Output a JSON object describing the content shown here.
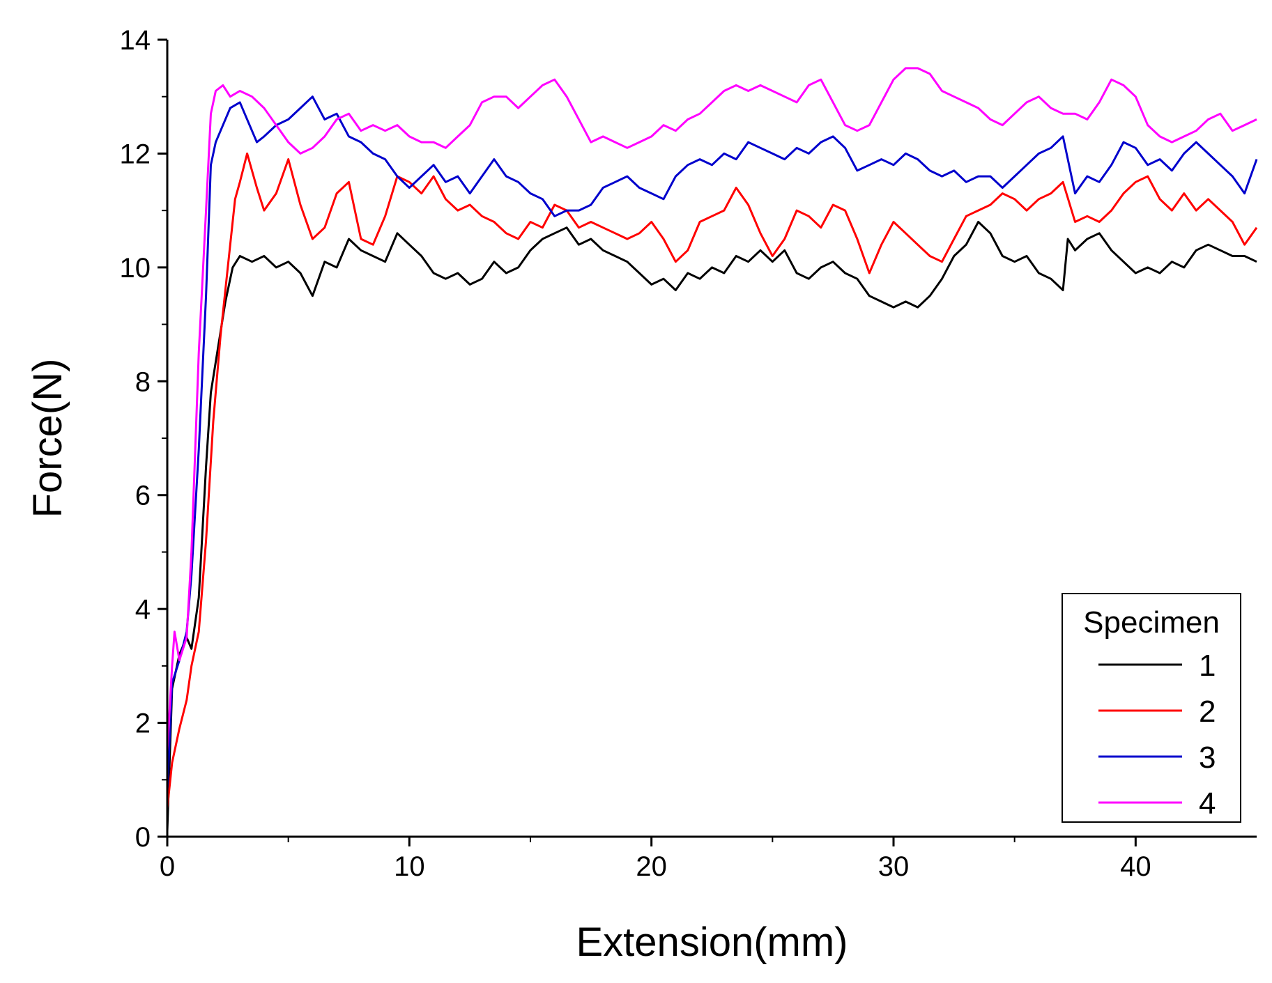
{
  "chart_data": {
    "type": "line",
    "title": "",
    "xlabel": "Extension(mm)",
    "ylabel": "Force(N)",
    "xlim": [
      0,
      45
    ],
    "ylim": [
      0,
      14
    ],
    "xticks": [
      0,
      10,
      20,
      30,
      40
    ],
    "xtick_labels": [
      "0",
      "10",
      "20",
      "30",
      "40"
    ],
    "yticks": [
      0,
      2,
      4,
      6,
      8,
      10,
      12,
      14
    ],
    "ytick_labels": [
      "0",
      "2",
      "4",
      "6",
      "8",
      "10",
      "12",
      "14"
    ],
    "grid": false,
    "legend": {
      "title": "Specimen",
      "position": "bottom-right"
    },
    "series": [
      {
        "name": "1",
        "color": "#000000",
        "x": [
          0,
          0.2,
          0.5,
          0.8,
          1.0,
          1.3,
          1.6,
          1.8,
          2.1,
          2.4,
          2.7,
          3.0,
          3.5,
          4.0,
          4.5,
          5.0,
          5.5,
          6.0,
          6.5,
          7.0,
          7.5,
          8.0,
          8.5,
          9.0,
          9.5,
          10.0,
          10.5,
          11.0,
          11.5,
          12.0,
          12.5,
          13.0,
          13.5,
          14.0,
          14.5,
          15.0,
          15.5,
          16.0,
          16.5,
          17.0,
          17.5,
          18.0,
          18.5,
          19.0,
          19.5,
          20.0,
          20.5,
          21.0,
          21.5,
          22.0,
          22.5,
          23.0,
          23.5,
          24.0,
          24.5,
          25.0,
          25.5,
          26.0,
          26.5,
          27.0,
          27.5,
          28.0,
          28.5,
          29.0,
          29.5,
          30.0,
          30.5,
          31.0,
          31.5,
          32.0,
          32.5,
          33.0,
          33.5,
          34.0,
          34.5,
          35.0,
          35.5,
          36.0,
          36.5,
          37.0,
          37.2,
          37.5,
          38.0,
          38.5,
          39.0,
          39.5,
          40.0,
          40.5,
          41.0,
          41.5,
          42.0,
          42.5,
          43.0,
          43.5,
          44.0,
          44.5,
          45.0
        ],
        "y": [
          0.1,
          2.6,
          3.2,
          3.5,
          3.3,
          4.2,
          6.5,
          7.8,
          8.6,
          9.4,
          10.0,
          10.2,
          10.1,
          10.2,
          10.0,
          10.1,
          9.9,
          9.5,
          10.1,
          10.0,
          10.5,
          10.3,
          10.2,
          10.1,
          10.6,
          10.4,
          10.2,
          9.9,
          9.8,
          9.9,
          9.7,
          9.8,
          10.1,
          9.9,
          10.0,
          10.3,
          10.5,
          10.6,
          10.7,
          10.4,
          10.5,
          10.3,
          10.2,
          10.1,
          9.9,
          9.7,
          9.8,
          9.6,
          9.9,
          9.8,
          10.0,
          9.9,
          10.2,
          10.1,
          10.3,
          10.1,
          10.3,
          9.9,
          9.8,
          10.0,
          10.1,
          9.9,
          9.8,
          9.5,
          9.4,
          9.3,
          9.4,
          9.3,
          9.5,
          9.8,
          10.2,
          10.4,
          10.8,
          10.6,
          10.2,
          10.1,
          10.2,
          9.9,
          9.8,
          9.6,
          10.5,
          10.3,
          10.5,
          10.6,
          10.3,
          10.1,
          9.9,
          10.0,
          9.9,
          10.1,
          10.0,
          10.3,
          10.4,
          10.3,
          10.2,
          10.2,
          10.1
        ]
      },
      {
        "name": "2",
        "color": "#ff0000",
        "x": [
          0,
          0.2,
          0.5,
          0.8,
          1.0,
          1.3,
          1.6,
          1.9,
          2.2,
          2.5,
          2.8,
          3.0,
          3.3,
          3.7,
          4.0,
          4.5,
          5.0,
          5.5,
          6.0,
          6.5,
          7.0,
          7.5,
          8.0,
          8.5,
          9.0,
          9.5,
          10.0,
          10.5,
          11.0,
          11.5,
          12.0,
          12.5,
          13.0,
          13.5,
          14.0,
          14.5,
          15.0,
          15.5,
          16.0,
          16.5,
          17.0,
          17.5,
          18.0,
          18.5,
          19.0,
          19.5,
          20.0,
          20.5,
          21.0,
          21.5,
          22.0,
          22.5,
          23.0,
          23.5,
          24.0,
          24.5,
          25.0,
          25.5,
          26.0,
          26.5,
          27.0,
          27.5,
          28.0,
          28.5,
          29.0,
          29.5,
          30.0,
          30.5,
          31.0,
          31.5,
          32.0,
          32.5,
          33.0,
          33.5,
          34.0,
          34.5,
          35.0,
          35.5,
          36.0,
          36.5,
          37.0,
          37.5,
          38.0,
          38.5,
          39.0,
          39.5,
          40.0,
          40.5,
          41.0,
          41.5,
          42.0,
          42.5,
          43.0,
          43.5,
          44.0,
          44.5,
          45.0
        ],
        "y": [
          0.5,
          1.3,
          1.9,
          2.4,
          3.0,
          3.6,
          5.2,
          7.3,
          8.8,
          10.0,
          11.2,
          11.5,
          12.0,
          11.4,
          11.0,
          11.3,
          11.9,
          11.1,
          10.5,
          10.7,
          11.3,
          11.5,
          10.5,
          10.4,
          10.9,
          11.6,
          11.5,
          11.3,
          11.6,
          11.2,
          11.0,
          11.1,
          10.9,
          10.8,
          10.6,
          10.5,
          10.8,
          10.7,
          11.1,
          11.0,
          10.7,
          10.8,
          10.7,
          10.6,
          10.5,
          10.6,
          10.8,
          10.5,
          10.1,
          10.3,
          10.8,
          10.9,
          11.0,
          11.4,
          11.1,
          10.6,
          10.2,
          10.5,
          11.0,
          10.9,
          10.7,
          11.1,
          11.0,
          10.5,
          9.9,
          10.4,
          10.8,
          10.6,
          10.4,
          10.2,
          10.1,
          10.5,
          10.9,
          11.0,
          11.1,
          11.3,
          11.2,
          11.0,
          11.2,
          11.3,
          11.5,
          10.8,
          10.9,
          10.8,
          11.0,
          11.3,
          11.5,
          11.6,
          11.2,
          11.0,
          11.3,
          11.0,
          11.2,
          11.0,
          10.8,
          10.4,
          10.7
        ]
      },
      {
        "name": "3",
        "color": "#0000cc",
        "x": [
          0,
          0.2,
          0.5,
          0.8,
          1.0,
          1.3,
          1.6,
          1.8,
          2.0,
          2.3,
          2.6,
          3.0,
          3.3,
          3.7,
          4.0,
          4.5,
          5.0,
          5.5,
          6.0,
          6.5,
          7.0,
          7.5,
          8.0,
          8.5,
          9.0,
          9.5,
          10.0,
          10.5,
          11.0,
          11.5,
          12.0,
          12.5,
          13.0,
          13.5,
          14.0,
          14.5,
          15.0,
          15.5,
          16.0,
          16.5,
          17.0,
          17.5,
          18.0,
          18.5,
          19.0,
          19.5,
          20.0,
          20.5,
          21.0,
          21.5,
          22.0,
          22.5,
          23.0,
          23.5,
          24.0,
          24.5,
          25.0,
          25.5,
          26.0,
          26.5,
          27.0,
          27.5,
          28.0,
          28.5,
          29.0,
          29.5,
          30.0,
          30.5,
          31.0,
          31.5,
          32.0,
          32.5,
          33.0,
          33.5,
          34.0,
          34.5,
          35.0,
          35.5,
          36.0,
          36.5,
          37.0,
          37.5,
          38.0,
          38.5,
          39.0,
          39.5,
          40.0,
          40.5,
          41.0,
          41.5,
          42.0,
          42.5,
          43.0,
          43.5,
          44.0,
          44.5,
          45.0
        ],
        "y": [
          0.8,
          2.7,
          3.1,
          3.6,
          4.6,
          6.8,
          9.5,
          11.8,
          12.2,
          12.5,
          12.8,
          12.9,
          12.6,
          12.2,
          12.3,
          12.5,
          12.6,
          12.8,
          13.0,
          12.6,
          12.7,
          12.3,
          12.2,
          12.0,
          11.9,
          11.6,
          11.4,
          11.6,
          11.8,
          11.5,
          11.6,
          11.3,
          11.6,
          11.9,
          11.6,
          11.5,
          11.3,
          11.2,
          10.9,
          11.0,
          11.0,
          11.1,
          11.4,
          11.5,
          11.6,
          11.4,
          11.3,
          11.2,
          11.6,
          11.8,
          11.9,
          11.8,
          12.0,
          11.9,
          12.2,
          12.1,
          12.0,
          11.9,
          12.1,
          12.0,
          12.2,
          12.3,
          12.1,
          11.7,
          11.8,
          11.9,
          11.8,
          12.0,
          11.9,
          11.7,
          11.6,
          11.7,
          11.5,
          11.6,
          11.6,
          11.4,
          11.6,
          11.8,
          12.0,
          12.1,
          12.3,
          11.3,
          11.6,
          11.5,
          11.8,
          12.2,
          12.1,
          11.8,
          11.9,
          11.7,
          12.0,
          12.2,
          12.0,
          11.8,
          11.6,
          11.3,
          11.9
        ]
      },
      {
        "name": "4",
        "color": "#ff00ff",
        "x": [
          0,
          0.2,
          0.3,
          0.5,
          0.8,
          1.0,
          1.3,
          1.6,
          1.8,
          2.0,
          2.3,
          2.6,
          3.0,
          3.5,
          4.0,
          4.5,
          5.0,
          5.5,
          6.0,
          6.5,
          7.0,
          7.5,
          8.0,
          8.5,
          9.0,
          9.5,
          10.0,
          10.5,
          11.0,
          11.5,
          12.0,
          12.5,
          13.0,
          13.5,
          14.0,
          14.5,
          15.0,
          15.5,
          16.0,
          16.5,
          17.0,
          17.5,
          18.0,
          18.5,
          19.0,
          19.5,
          20.0,
          20.5,
          21.0,
          21.5,
          22.0,
          22.5,
          23.0,
          23.5,
          24.0,
          24.5,
          25.0,
          25.5,
          26.0,
          26.5,
          27.0,
          27.5,
          28.0,
          28.5,
          29.0,
          29.5,
          30.0,
          30.5,
          31.0,
          31.5,
          32.0,
          32.5,
          33.0,
          33.5,
          34.0,
          34.5,
          35.0,
          35.5,
          36.0,
          36.5,
          37.0,
          37.5,
          38.0,
          38.5,
          39.0,
          39.5,
          40.0,
          40.5,
          41.0,
          41.5,
          42.0,
          42.5,
          43.0,
          43.5,
          44.0,
          44.5,
          45.0
        ],
        "y": [
          1.5,
          3.0,
          3.6,
          3.1,
          3.5,
          5.0,
          8.5,
          11.0,
          12.7,
          13.1,
          13.2,
          13.0,
          13.1,
          13.0,
          12.8,
          12.5,
          12.2,
          12.0,
          12.1,
          12.3,
          12.6,
          12.7,
          12.4,
          12.5,
          12.4,
          12.5,
          12.3,
          12.2,
          12.2,
          12.1,
          12.3,
          12.5,
          12.9,
          13.0,
          13.0,
          12.8,
          13.0,
          13.2,
          13.3,
          13.0,
          12.6,
          12.2,
          12.3,
          12.2,
          12.1,
          12.2,
          12.3,
          12.5,
          12.4,
          12.6,
          12.7,
          12.9,
          13.1,
          13.2,
          13.1,
          13.2,
          13.1,
          13.0,
          12.9,
          13.2,
          13.3,
          12.9,
          12.5,
          12.4,
          12.5,
          12.9,
          13.3,
          13.5,
          13.5,
          13.4,
          13.1,
          13.0,
          12.9,
          12.8,
          12.6,
          12.5,
          12.7,
          12.9,
          13.0,
          12.8,
          12.7,
          12.7,
          12.6,
          12.9,
          13.3,
          13.2,
          13.0,
          12.5,
          12.3,
          12.2,
          12.3,
          12.4,
          12.6,
          12.7,
          12.4,
          12.5,
          12.6
        ]
      }
    ]
  }
}
